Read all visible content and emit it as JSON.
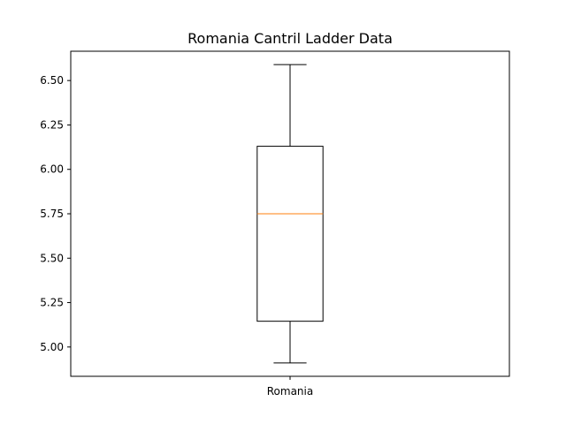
{
  "chart_data": {
    "type": "box",
    "title": "Romania Cantril Ladder Data",
    "xlabel": "",
    "ylabel": "",
    "categories": [
      "Romania"
    ],
    "boxes": [
      {
        "category": "Romania",
        "whislo": 4.91,
        "q1": 5.145,
        "med": 5.75,
        "q3": 6.13,
        "whishi": 6.59
      }
    ],
    "ylim": [
      4.835,
      6.665
    ],
    "yticks": [
      "5.00",
      "5.25",
      "5.50",
      "5.75",
      "6.00",
      "6.25",
      "6.50"
    ],
    "grid": false,
    "legend": "none",
    "colors": {
      "box": "#000000",
      "median": "#ff7f0e",
      "axes": "#000000"
    }
  }
}
